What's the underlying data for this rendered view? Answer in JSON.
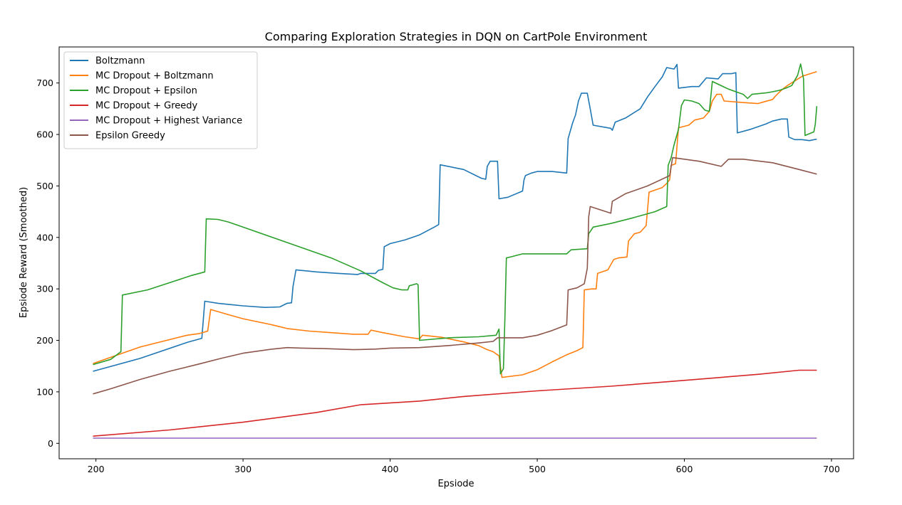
{
  "chart_data": {
    "type": "line",
    "title": "Comparing Exploration Strategies in DQN on CartPole Environment",
    "xlabel": "Epsiode",
    "ylabel": "Epsiode Reward (Smoothed)",
    "xlim": [
      175,
      715
    ],
    "ylim": [
      -30,
      770
    ],
    "xticks": [
      200,
      300,
      400,
      500,
      600,
      700
    ],
    "yticks": [
      0,
      100,
      200,
      300,
      400,
      500,
      600,
      700
    ],
    "grid": false,
    "legend_position": "top-left",
    "series": [
      {
        "name": "Boltzmann",
        "color": "#1f77b4",
        "points": [
          [
            198,
            140
          ],
          [
            230,
            165
          ],
          [
            262,
            196
          ],
          [
            272,
            204
          ],
          [
            274,
            276
          ],
          [
            283,
            272
          ],
          [
            290,
            270
          ],
          [
            300,
            267
          ],
          [
            315,
            264
          ],
          [
            325,
            265
          ],
          [
            330,
            272
          ],
          [
            333,
            273
          ],
          [
            334,
            305
          ],
          [
            336,
            337
          ],
          [
            350,
            333
          ],
          [
            365,
            330
          ],
          [
            378,
            328
          ],
          [
            380,
            330
          ],
          [
            390,
            330
          ],
          [
            392,
            336
          ],
          [
            395,
            338
          ],
          [
            396,
            382
          ],
          [
            400,
            388
          ],
          [
            410,
            395
          ],
          [
            420,
            405
          ],
          [
            430,
            420
          ],
          [
            433,
            425
          ],
          [
            434,
            541
          ],
          [
            450,
            532
          ],
          [
            462,
            515
          ],
          [
            465,
            513
          ],
          [
            466,
            538
          ],
          [
            468,
            548
          ],
          [
            473,
            548
          ],
          [
            474,
            475
          ],
          [
            480,
            478
          ],
          [
            490,
            490
          ],
          [
            491,
            512
          ],
          [
            492,
            520
          ],
          [
            496,
            525
          ],
          [
            500,
            528
          ],
          [
            510,
            528
          ],
          [
            520,
            525
          ],
          [
            521,
            592
          ],
          [
            524,
            622
          ],
          [
            526,
            638
          ],
          [
            528,
            665
          ],
          [
            530,
            680
          ],
          [
            534,
            680
          ],
          [
            536,
            650
          ],
          [
            538,
            618
          ],
          [
            550,
            612
          ],
          [
            551,
            608
          ],
          [
            553,
            624
          ],
          [
            560,
            632
          ],
          [
            570,
            650
          ],
          [
            575,
            673
          ],
          [
            580,
            693
          ],
          [
            585,
            712
          ],
          [
            588,
            730
          ],
          [
            593,
            727
          ],
          [
            595,
            736
          ],
          [
            596,
            690
          ],
          [
            605,
            693
          ],
          [
            610,
            693
          ],
          [
            615,
            710
          ],
          [
            623,
            708
          ],
          [
            626,
            718
          ],
          [
            632,
            718
          ],
          [
            635,
            720
          ],
          [
            636,
            603
          ],
          [
            645,
            610
          ],
          [
            655,
            620
          ],
          [
            660,
            626
          ],
          [
            666,
            630
          ],
          [
            670,
            630
          ],
          [
            671,
            595
          ],
          [
            675,
            590
          ],
          [
            680,
            590
          ],
          [
            685,
            588
          ],
          [
            690,
            591
          ]
        ]
      },
      {
        "name": "MC Dropout + Boltzmann",
        "color": "#ff7f0e",
        "points": [
          [
            198,
            155
          ],
          [
            230,
            187
          ],
          [
            262,
            210
          ],
          [
            270,
            213
          ],
          [
            276,
            218
          ],
          [
            278,
            260
          ],
          [
            290,
            250
          ],
          [
            300,
            242
          ],
          [
            320,
            230
          ],
          [
            330,
            223
          ],
          [
            345,
            218
          ],
          [
            360,
            215
          ],
          [
            375,
            212
          ],
          [
            385,
            212
          ],
          [
            387,
            220
          ],
          [
            395,
            215
          ],
          [
            410,
            207
          ],
          [
            420,
            203
          ],
          [
            422,
            210
          ],
          [
            435,
            206
          ],
          [
            450,
            197
          ],
          [
            460,
            190
          ],
          [
            466,
            182
          ],
          [
            470,
            178
          ],
          [
            474,
            170
          ],
          [
            476,
            128
          ],
          [
            490,
            133
          ],
          [
            500,
            143
          ],
          [
            510,
            158
          ],
          [
            520,
            172
          ],
          [
            527,
            180
          ],
          [
            531,
            186
          ],
          [
            532,
            298
          ],
          [
            537,
            300
          ],
          [
            540,
            300
          ],
          [
            541,
            330
          ],
          [
            548,
            337
          ],
          [
            552,
            357
          ],
          [
            555,
            360
          ],
          [
            561,
            362
          ],
          [
            562,
            393
          ],
          [
            566,
            407
          ],
          [
            570,
            410
          ],
          [
            574,
            423
          ],
          [
            576,
            488
          ],
          [
            580,
            492
          ],
          [
            585,
            497
          ],
          [
            588,
            505
          ],
          [
            590,
            512
          ],
          [
            591,
            540
          ],
          [
            594,
            543
          ],
          [
            596,
            613
          ],
          [
            603,
            618
          ],
          [
            607,
            628
          ],
          [
            613,
            632
          ],
          [
            617,
            645
          ],
          [
            619,
            665
          ],
          [
            622,
            678
          ],
          [
            625,
            678
          ],
          [
            627,
            665
          ],
          [
            640,
            662
          ],
          [
            650,
            660
          ],
          [
            655,
            664
          ],
          [
            660,
            668
          ],
          [
            662,
            675
          ],
          [
            666,
            686
          ],
          [
            670,
            695
          ],
          [
            680,
            713
          ],
          [
            690,
            722
          ]
        ]
      },
      {
        "name": "MC Dropout + Epsilon",
        "color": "#2ca02c",
        "points": [
          [
            198,
            153
          ],
          [
            210,
            163
          ],
          [
            217,
            178
          ],
          [
            218,
            288
          ],
          [
            235,
            298
          ],
          [
            250,
            312
          ],
          [
            265,
            326
          ],
          [
            274,
            333
          ],
          [
            275,
            436
          ],
          [
            283,
            435
          ],
          [
            290,
            430
          ],
          [
            300,
            420
          ],
          [
            320,
            400
          ],
          [
            340,
            380
          ],
          [
            360,
            360
          ],
          [
            380,
            335
          ],
          [
            395,
            312
          ],
          [
            402,
            302
          ],
          [
            408,
            298
          ],
          [
            412,
            298
          ],
          [
            413,
            306
          ],
          [
            418,
            310
          ],
          [
            419,
            308
          ],
          [
            420,
            200
          ],
          [
            440,
            205
          ],
          [
            460,
            207
          ],
          [
            472,
            210
          ],
          [
            474,
            222
          ],
          [
            475,
            135
          ],
          [
            477,
            145
          ],
          [
            478,
            240
          ],
          [
            479,
            360
          ],
          [
            483,
            363
          ],
          [
            490,
            368
          ],
          [
            500,
            368
          ],
          [
            520,
            368
          ],
          [
            523,
            376
          ],
          [
            534,
            378
          ],
          [
            535,
            407
          ],
          [
            538,
            420
          ],
          [
            550,
            427
          ],
          [
            565,
            438
          ],
          [
            580,
            450
          ],
          [
            588,
            460
          ],
          [
            589,
            540
          ],
          [
            591,
            555
          ],
          [
            593,
            580
          ],
          [
            596,
            610
          ],
          [
            598,
            656
          ],
          [
            600,
            667
          ],
          [
            605,
            665
          ],
          [
            610,
            660
          ],
          [
            614,
            647
          ],
          [
            617,
            645
          ],
          [
            619,
            703
          ],
          [
            630,
            688
          ],
          [
            640,
            678
          ],
          [
            643,
            670
          ],
          [
            646,
            678
          ],
          [
            656,
            681
          ],
          [
            660,
            683
          ],
          [
            665,
            686
          ],
          [
            669,
            690
          ],
          [
            673,
            695
          ],
          [
            677,
            715
          ],
          [
            679,
            737
          ],
          [
            681,
            708
          ],
          [
            682,
            598
          ],
          [
            688,
            605
          ],
          [
            689,
            620
          ],
          [
            690,
            655
          ]
        ]
      },
      {
        "name": "MC Dropout + Greedy",
        "color": "#d62728",
        "points": [
          [
            198,
            14
          ],
          [
            250,
            26
          ],
          [
            300,
            41
          ],
          [
            350,
            60
          ],
          [
            380,
            75
          ],
          [
            420,
            82
          ],
          [
            450,
            91
          ],
          [
            500,
            102
          ],
          [
            550,
            111
          ],
          [
            590,
            120
          ],
          [
            620,
            127
          ],
          [
            650,
            134
          ],
          [
            678,
            142
          ],
          [
            690,
            142
          ]
        ]
      },
      {
        "name": "MC Dropout + Highest Variance",
        "color": "#9467bd",
        "points": [
          [
            198,
            10
          ],
          [
            300,
            10
          ],
          [
            400,
            10
          ],
          [
            500,
            10
          ],
          [
            600,
            10
          ],
          [
            690,
            10
          ]
        ]
      },
      {
        "name": "Epsilon Greedy",
        "color": "#8c564b",
        "points": [
          [
            198,
            96
          ],
          [
            210,
            106
          ],
          [
            230,
            124
          ],
          [
            250,
            140
          ],
          [
            270,
            154
          ],
          [
            285,
            165
          ],
          [
            300,
            175
          ],
          [
            320,
            183
          ],
          [
            330,
            186
          ],
          [
            340,
            185
          ],
          [
            355,
            184
          ],
          [
            375,
            182
          ],
          [
            390,
            183
          ],
          [
            400,
            185
          ],
          [
            420,
            186
          ],
          [
            440,
            190
          ],
          [
            460,
            195
          ],
          [
            470,
            198
          ],
          [
            473,
            205
          ],
          [
            490,
            205
          ],
          [
            500,
            210
          ],
          [
            510,
            219
          ],
          [
            520,
            230
          ],
          [
            521,
            298
          ],
          [
            527,
            302
          ],
          [
            532,
            310
          ],
          [
            534,
            340
          ],
          [
            535,
            440
          ],
          [
            536,
            460
          ],
          [
            550,
            447
          ],
          [
            551,
            470
          ],
          [
            560,
            485
          ],
          [
            575,
            500
          ],
          [
            590,
            520
          ],
          [
            592,
            555
          ],
          [
            610,
            548
          ],
          [
            625,
            538
          ],
          [
            630,
            552
          ],
          [
            640,
            552
          ],
          [
            660,
            545
          ],
          [
            678,
            532
          ],
          [
            690,
            523
          ]
        ]
      }
    ]
  }
}
